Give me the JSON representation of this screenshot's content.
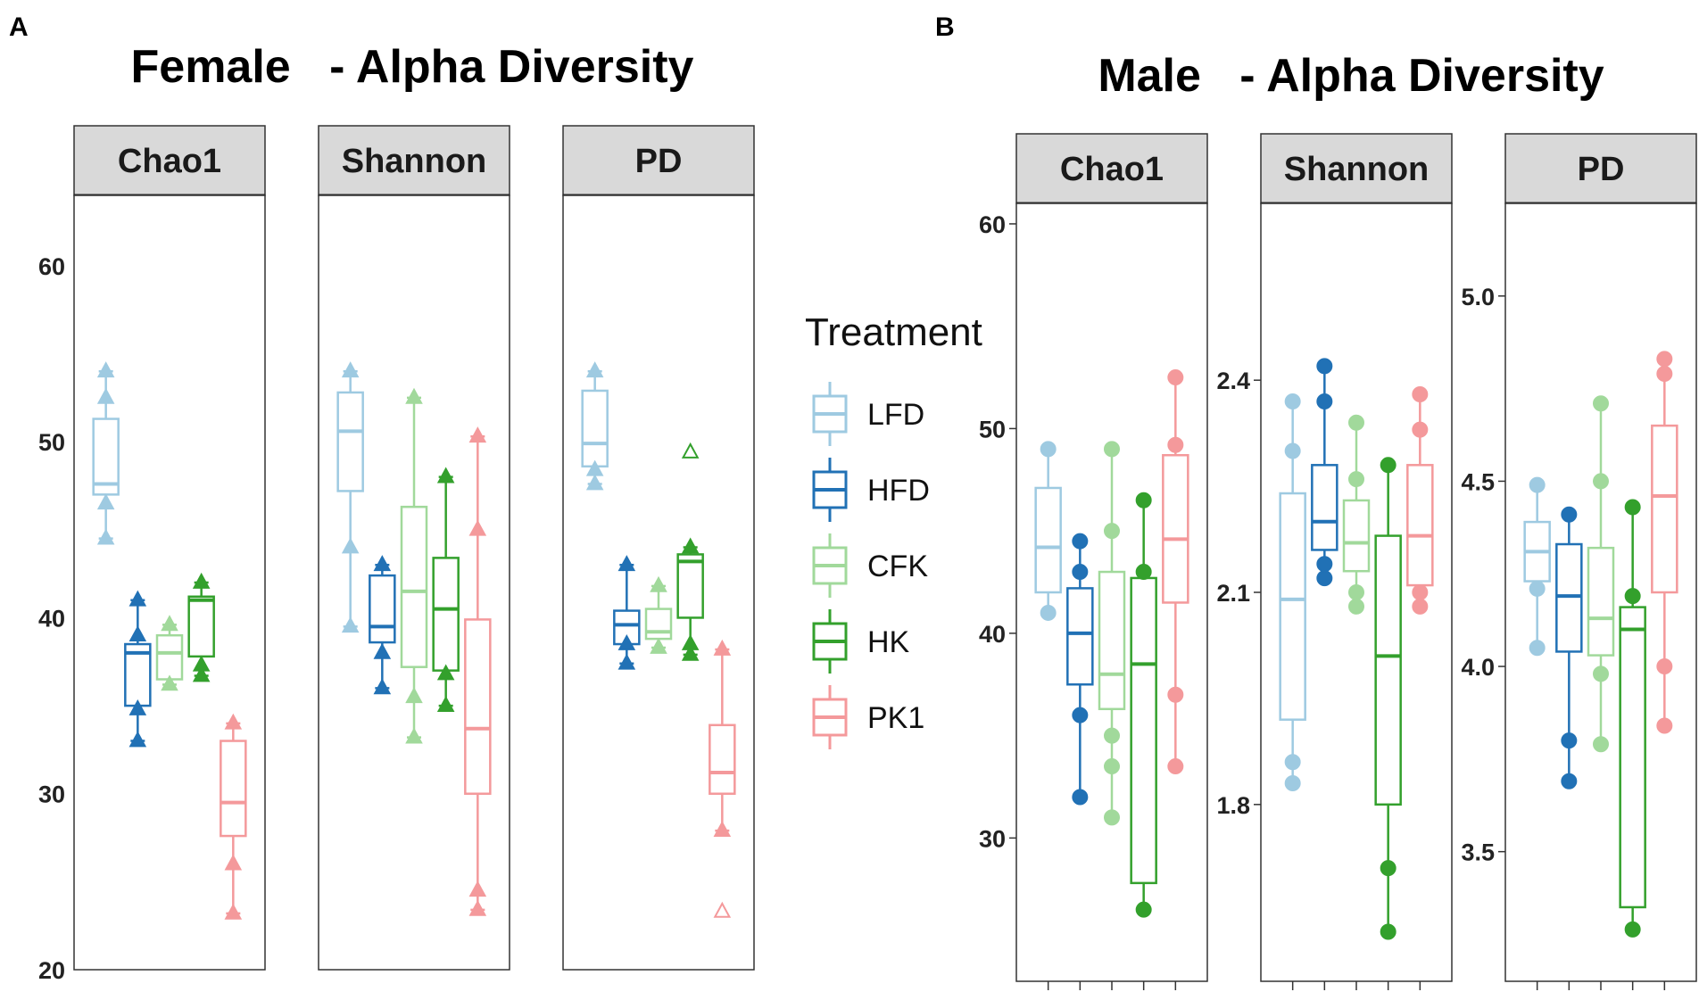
{
  "panel_labels": {
    "left": "A",
    "right": "B"
  },
  "titles": {
    "female": "Female   - Alpha Diversity",
    "male": "Male   - Alpha Diversity"
  },
  "legend": {
    "title": "Treatment",
    "items": [
      {
        "label": "LFD",
        "color": "#9ecae1"
      },
      {
        "label": "HFD",
        "color": "#2171b5"
      },
      {
        "label": "CFK",
        "color": "#a1d99b"
      },
      {
        "label": "HK",
        "color": "#33a02c"
      },
      {
        "label": "PK1",
        "color": "#f4999b"
      }
    ]
  },
  "chart_data": [
    {
      "type": "box",
      "title": "Female   - Alpha Diversity",
      "point_shape": "triangle",
      "shared_y": true,
      "ylim": [
        20,
        64
      ],
      "yticks": [
        20,
        30,
        40,
        50,
        60
      ],
      "groups": [
        "LFD",
        "HFD",
        "CFK",
        "HK",
        "PK1"
      ],
      "facets": [
        {
          "name": "Chao1",
          "boxes": [
            {
              "group": "LFD",
              "whisker_low": 44.5,
              "q1": 47,
              "median": 47.6,
              "q3": 51.3,
              "whisker_high": 54,
              "points": [
                44.5,
                46.5,
                52.5,
                54
              ]
            },
            {
              "group": "HFD",
              "whisker_low": 33,
              "q1": 35,
              "median": 38,
              "q3": 38.5,
              "whisker_high": 41,
              "points": [
                33,
                34.8,
                39,
                41
              ]
            },
            {
              "group": "CFK",
              "whisker_low": 36.2,
              "q1": 36.5,
              "median": 38,
              "q3": 39,
              "whisker_high": 39.6,
              "points": [
                36.2,
                39.6
              ]
            },
            {
              "group": "HK",
              "whisker_low": 36.7,
              "q1": 37.8,
              "median": 41,
              "q3": 41.2,
              "whisker_high": 42,
              "points": [
                36.7,
                37.3,
                42
              ]
            },
            {
              "group": "PK1",
              "whisker_low": 23.2,
              "q1": 27.6,
              "median": 29.5,
              "q3": 33,
              "whisker_high": 34,
              "points": [
                23.2,
                26,
                34
              ]
            }
          ]
        },
        {
          "name": "Shannon",
          "boxes": [
            {
              "group": "LFD",
              "whisker_low": 39.5,
              "q1": 47.2,
              "median": 50.6,
              "q3": 52.8,
              "whisker_high": 54,
              "points": [
                39.5,
                44,
                54
              ]
            },
            {
              "group": "HFD",
              "whisker_low": 36,
              "q1": 38.6,
              "median": 39.5,
              "q3": 42.4,
              "whisker_high": 43,
              "points": [
                36,
                38,
                43
              ]
            },
            {
              "group": "CFK",
              "whisker_low": 33.2,
              "q1": 37.2,
              "median": 41.5,
              "q3": 46.3,
              "whisker_high": 52.5,
              "points": [
                33.2,
                35.5,
                52.5
              ]
            },
            {
              "group": "HK",
              "whisker_low": 35,
              "q1": 37,
              "median": 40.5,
              "q3": 43.4,
              "whisker_high": 48,
              "points": [
                35,
                36.8,
                48
              ]
            },
            {
              "group": "PK1",
              "whisker_low": 23.4,
              "q1": 30,
              "median": 33.7,
              "q3": 39.9,
              "whisker_high": 50.3,
              "points": [
                23.4,
                24.5,
                45,
                50.3
              ]
            }
          ]
        },
        {
          "name": "PD",
          "boxes": [
            {
              "group": "LFD",
              "whisker_low": 47.6,
              "q1": 48.6,
              "median": 49.9,
              "q3": 52.9,
              "whisker_high": 54,
              "points": [
                47.6,
                48.4,
                54
              ]
            },
            {
              "group": "HFD",
              "whisker_low": 37.4,
              "q1": 38.5,
              "median": 39.6,
              "q3": 40.4,
              "whisker_high": 43,
              "points": [
                37.4,
                38.5,
                43
              ]
            },
            {
              "group": "CFK",
              "whisker_low": 38.3,
              "q1": 38.8,
              "median": 39.2,
              "q3": 40.5,
              "whisker_high": 41.8,
              "points": [
                38.3,
                41.8
              ]
            },
            {
              "group": "HK",
              "whisker_low": 37.9,
              "q1": 40,
              "median": 43.2,
              "q3": 43.6,
              "whisker_high": 44,
              "points": [
                37.9,
                38.5,
                44
              ],
              "outliers": [
                49.4
              ]
            },
            {
              "group": "PK1",
              "whisker_low": 27.9,
              "q1": 30,
              "median": 31.2,
              "q3": 33.9,
              "whisker_high": 38.2,
              "points": [
                27.9,
                38.2
              ],
              "outliers": [
                23.3
              ]
            }
          ]
        }
      ]
    },
    {
      "type": "box",
      "title": "Male   - Alpha Diversity",
      "point_shape": "circle",
      "shared_y": false,
      "groups": [
        "LFD",
        "HFD",
        "CFK",
        "HK",
        "PK1"
      ],
      "facets": [
        {
          "name": "Chao1",
          "ylim": [
            23,
            61
          ],
          "yticks": [
            30,
            40,
            50,
            60
          ],
          "boxes": [
            {
              "group": "LFD",
              "whisker_low": 41,
              "q1": 42,
              "median": 44.2,
              "q3": 47.1,
              "whisker_high": 49,
              "points": [
                41,
                49
              ]
            },
            {
              "group": "HFD",
              "whisker_low": 32,
              "q1": 37.5,
              "median": 40,
              "q3": 42.2,
              "whisker_high": 44.5,
              "points": [
                32,
                36,
                43,
                44.5
              ]
            },
            {
              "group": "CFK",
              "whisker_low": 31,
              "q1": 36.3,
              "median": 38,
              "q3": 43,
              "whisker_high": 49,
              "points": [
                31,
                33.5,
                35,
                45,
                49
              ]
            },
            {
              "group": "HK",
              "whisker_low": 26.5,
              "q1": 27.8,
              "median": 38.5,
              "q3": 42.7,
              "whisker_high": 46.5,
              "points": [
                26.5,
                43,
                46.5
              ]
            },
            {
              "group": "PK1",
              "whisker_low": 33.5,
              "q1": 41.5,
              "median": 44.6,
              "q3": 48.7,
              "whisker_high": 52.5,
              "points": [
                33.5,
                37,
                49.2,
                52.5
              ]
            }
          ]
        },
        {
          "name": "Shannon",
          "ylim": [
            1.55,
            2.65
          ],
          "yticks": [
            1.8,
            2.1,
            2.4
          ],
          "ytick_labels": [
            "1.8",
            "2.1",
            "2.4"
          ],
          "boxes": [
            {
              "group": "LFD",
              "whisker_low": 1.83,
              "q1": 1.92,
              "median": 2.09,
              "q3": 2.24,
              "whisker_high": 2.37,
              "points": [
                1.83,
                1.86,
                2.3,
                2.37
              ]
            },
            {
              "group": "HFD",
              "whisker_low": 2.12,
              "q1": 2.16,
              "median": 2.2,
              "q3": 2.28,
              "whisker_high": 2.42,
              "points": [
                2.12,
                2.14,
                2.37,
                2.42
              ]
            },
            {
              "group": "CFK",
              "whisker_low": 2.08,
              "q1": 2.13,
              "median": 2.17,
              "q3": 2.23,
              "whisker_high": 2.34,
              "points": [
                2.08,
                2.1,
                2.26,
                2.34
              ]
            },
            {
              "group": "HK",
              "whisker_low": 1.62,
              "q1": 1.8,
              "median": 2.01,
              "q3": 2.18,
              "whisker_high": 2.28,
              "points": [
                1.62,
                1.71,
                2.28
              ]
            },
            {
              "group": "PK1",
              "whisker_low": 2.08,
              "q1": 2.11,
              "median": 2.18,
              "q3": 2.28,
              "whisker_high": 2.38,
              "points": [
                2.08,
                2.1,
                2.33,
                2.38
              ]
            }
          ]
        },
        {
          "name": "PD",
          "ylim": [
            3.15,
            5.25
          ],
          "yticks": [
            3.5,
            4.0,
            4.5,
            5.0
          ],
          "ytick_labels": [
            "3.5",
            "4.0",
            "4.5",
            "5.0"
          ],
          "boxes": [
            {
              "group": "LFD",
              "whisker_low": 4.05,
              "q1": 4.23,
              "median": 4.31,
              "q3": 4.39,
              "whisker_high": 4.49,
              "points": [
                4.05,
                4.21,
                4.49
              ]
            },
            {
              "group": "HFD",
              "whisker_low": 3.69,
              "q1": 4.04,
              "median": 4.19,
              "q3": 4.33,
              "whisker_high": 4.41,
              "points": [
                3.69,
                3.8,
                4.41
              ]
            },
            {
              "group": "CFK",
              "whisker_low": 3.79,
              "q1": 4.03,
              "median": 4.13,
              "q3": 4.32,
              "whisker_high": 4.71,
              "points": [
                3.79,
                3.98,
                4.5,
                4.71
              ]
            },
            {
              "group": "HK",
              "whisker_low": 3.29,
              "q1": 3.35,
              "median": 4.1,
              "q3": 4.16,
              "whisker_high": 4.43,
              "points": [
                3.29,
                4.19,
                4.43
              ]
            },
            {
              "group": "PK1",
              "whisker_low": 3.84,
              "q1": 4.2,
              "median": 4.46,
              "q3": 4.65,
              "whisker_high": 4.83,
              "points": [
                3.84,
                4.0,
                4.79,
                4.83
              ]
            }
          ]
        }
      ]
    }
  ]
}
